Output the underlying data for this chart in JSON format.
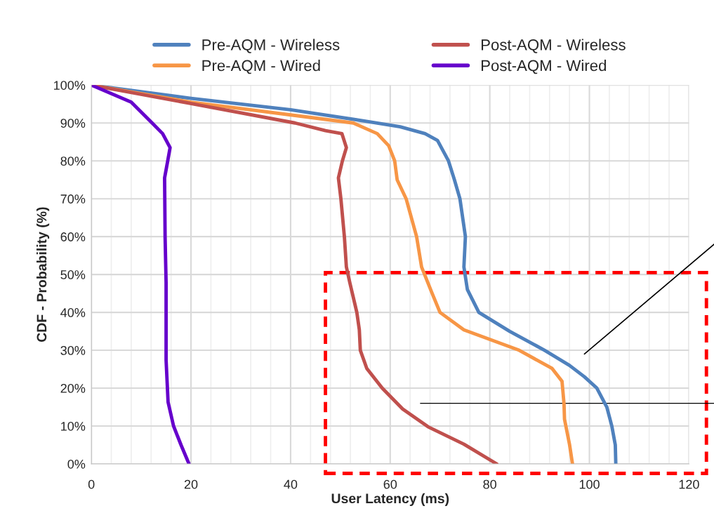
{
  "chart_data": {
    "type": "line",
    "xlabel": "User Latency (ms)",
    "ylabel": "CDF - Probability (%)",
    "xlim": [
      0,
      120
    ],
    "xticks": [
      0,
      20,
      40,
      60,
      80,
      100,
      120
    ],
    "ylim": [
      0,
      100
    ],
    "yticks": [
      {
        "value": 0,
        "label": "0%"
      },
      {
        "value": 10,
        "label": "10%"
      },
      {
        "value": 20,
        "label": "20%"
      },
      {
        "value": 30,
        "label": "30%"
      },
      {
        "value": 40,
        "label": "40%"
      },
      {
        "value": 50,
        "label": "50%"
      },
      {
        "value": 60,
        "label": "60%"
      },
      {
        "value": 70,
        "label": "70%"
      },
      {
        "value": 80,
        "label": "80%"
      },
      {
        "value": 90,
        "label": "90%"
      },
      {
        "value": 100,
        "label": "100%"
      }
    ],
    "grid": true,
    "legend": "top",
    "marker": "none",
    "line_style": "solid",
    "series": [
      {
        "name": "Pre-AQM - Wireless",
        "color": "#4f81bd",
        "x": [
          0,
          20,
          40,
          55,
          62,
          67,
          69.5,
          71.7,
          72.9,
          74,
          75.1,
          74.8,
          75.5,
          77.8,
          84,
          91,
          96,
          99,
          101.5,
          103.5,
          104.5,
          105.2,
          105.3
        ],
        "values": [
          100,
          96.5,
          93.5,
          90.5,
          89,
          87.2,
          85.4,
          80,
          75,
          70,
          60,
          52,
          46,
          40,
          35,
          30,
          26,
          23,
          20,
          15,
          10,
          5,
          0
        ]
      },
      {
        "name": "Pre-AQM - Wired",
        "color": "#f79646",
        "x": [
          0,
          20,
          45,
          52.6,
          57.4,
          59.7,
          60.9,
          61.4,
          63.2,
          65.3,
          66.3,
          68.3,
          70,
          74.8,
          85.9,
          92.5,
          94.5,
          94.9,
          95,
          96,
          96.6
        ],
        "values": [
          100,
          95.5,
          91.3,
          90,
          87.2,
          84,
          80,
          75,
          70,
          60,
          52,
          45.4,
          40,
          35.4,
          30,
          25.2,
          21.8,
          15.9,
          11.8,
          5.2,
          0
        ]
      },
      {
        "name": "Post-AQM - Wireless",
        "color": "#c0504d",
        "x": [
          0,
          19.7,
          40.9,
          47,
          50.3,
          51.2,
          50.4,
          49.6,
          50.1,
          50.8,
          51.2,
          51.9,
          53.3,
          53.8,
          54,
          55.3,
          58.4,
          62.5,
          67.6,
          74.8,
          81.4
        ],
        "values": [
          100,
          95.2,
          90,
          88,
          87.2,
          83.5,
          80,
          75.5,
          70,
          60,
          52,
          47.8,
          40,
          35.4,
          30,
          25.2,
          20,
          14.5,
          9.8,
          5.2,
          0
        ]
      },
      {
        "name": "Post-AQM - Wired",
        "color": "#6600cc",
        "x": [
          0,
          8,
          12.2,
          14.3,
          15.8,
          15.3,
          14.7,
          14.8,
          15,
          15,
          15.4,
          16.5,
          18,
          19.6
        ],
        "values": [
          100,
          95.5,
          90,
          87.2,
          83.5,
          79.8,
          75.5,
          60,
          47.8,
          27.4,
          16.3,
          10,
          5,
          0
        ]
      }
    ]
  }
}
